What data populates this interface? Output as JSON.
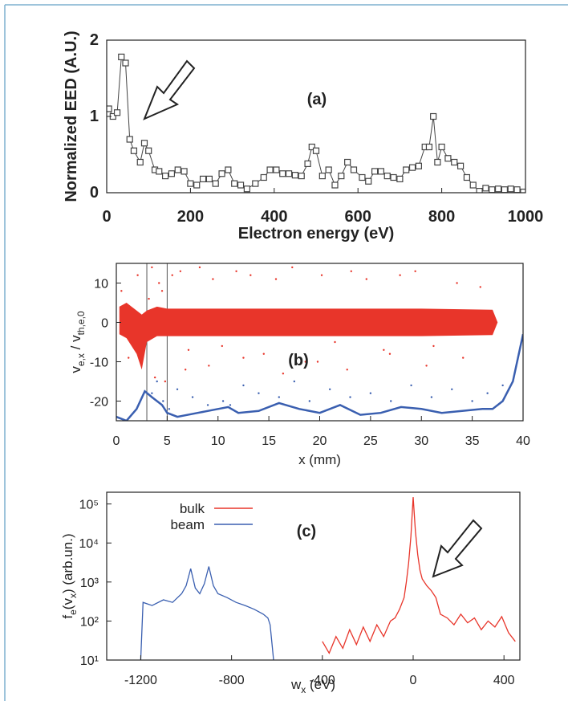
{
  "chart_data": [
    {
      "type": "line",
      "annotation": "(a)",
      "xlabel": "Electron energy (eV)",
      "ylabel": [
        "Normalized EED (A.U.)"
      ],
      "xlim": [
        0,
        1000
      ],
      "xticks": [
        0,
        200,
        400,
        600,
        800,
        1000
      ],
      "ylim": [
        0,
        2
      ],
      "yticks": [
        0,
        1,
        2
      ],
      "marker": "square",
      "series": [
        {
          "color": "#444444",
          "x": [
            5,
            15,
            25,
            35,
            45,
            55,
            65,
            80,
            90,
            100,
            115,
            125,
            140,
            155,
            170,
            185,
            200,
            215,
            230,
            245,
            260,
            275,
            290,
            305,
            320,
            335,
            355,
            375,
            390,
            405,
            420,
            435,
            450,
            465,
            480,
            490,
            500,
            515,
            530,
            545,
            560,
            575,
            590,
            610,
            625,
            640,
            655,
            670,
            685,
            700,
            715,
            730,
            745,
            760,
            770,
            780,
            790,
            800,
            815,
            830,
            845,
            860,
            875,
            890,
            905,
            920,
            935,
            950,
            965,
            980,
            995
          ],
          "values": [
            1.1,
            1.0,
            1.05,
            1.78,
            1.7,
            0.7,
            0.55,
            0.4,
            0.65,
            0.55,
            0.3,
            0.28,
            0.22,
            0.25,
            0.3,
            0.28,
            0.12,
            0.1,
            0.18,
            0.18,
            0.12,
            0.25,
            0.3,
            0.12,
            0.1,
            0.05,
            0.12,
            0.2,
            0.3,
            0.3,
            0.25,
            0.25,
            0.23,
            0.22,
            0.38,
            0.6,
            0.55,
            0.22,
            0.3,
            0.1,
            0.22,
            0.4,
            0.3,
            0.2,
            0.15,
            0.28,
            0.28,
            0.22,
            0.2,
            0.18,
            0.3,
            0.33,
            0.35,
            0.6,
            0.6,
            1.0,
            0.4,
            0.6,
            0.45,
            0.4,
            0.35,
            0.2,
            0.1,
            0.02,
            0.06,
            0.04,
            0.05,
            0.04,
            0.05,
            0.04,
            0.01
          ]
        }
      ]
    },
    {
      "type": "scatter",
      "annotation": "(b)",
      "xlabel": "x (mm)",
      "ylabel": [
        "v",
        "e,x",
        " / v",
        "th,e,0"
      ],
      "xlim": [
        0,
        40
      ],
      "xticks": [
        0,
        5,
        10,
        15,
        20,
        25,
        30,
        35,
        40
      ],
      "ylim": [
        -25,
        15
      ],
      "yticks": [
        -20,
        -10,
        0,
        10
      ],
      "vlines": [
        3,
        5
      ],
      "series": [
        {
          "style": "band",
          "color": "#e8352a",
          "x": [
            0.3,
            1,
            2,
            2.5,
            3,
            4,
            5,
            10,
            20,
            30,
            37,
            37.5
          ],
          "upper": [
            4,
            5,
            3,
            2,
            3,
            4,
            3.5,
            3.5,
            3.5,
            3.5,
            3.2,
            0
          ],
          "lower": [
            -3,
            -4,
            -8,
            -12,
            -5,
            -3.5,
            -3.5,
            -3.5,
            -3.5,
            -3.5,
            -3.2,
            0
          ]
        },
        {
          "style": "points",
          "color": "#e8352a",
          "x": [
            0.5,
            1.2,
            2.1,
            3.5,
            4.2,
            5.5,
            6.3,
            7.1,
            8.2,
            9.5,
            10.4,
            11.8,
            13.2,
            14.5,
            15.7,
            17.3,
            18.6,
            20.2,
            21.5,
            23.1,
            24.6,
            26.3,
            27.9,
            29.4,
            31.2,
            33.5,
            35.8,
            4.8,
            6.8,
            9.1,
            12.5,
            16.4,
            19.8,
            22.7,
            26.9,
            30.5,
            34.1,
            3.2,
            3.8,
            4.5
          ],
          "values": [
            8,
            -9,
            12,
            14,
            10,
            12,
            13,
            -7,
            14,
            11,
            -6,
            13,
            12,
            -8,
            11,
            14,
            -10,
            12,
            -5,
            13,
            11,
            -7,
            12,
            13,
            -6,
            10,
            9,
            -15,
            -12,
            -11,
            -9,
            -13,
            -10,
            -12,
            -8,
            -11,
            -9,
            6,
            -14,
            8
          ]
        },
        {
          "style": "points",
          "color": "#3a5fb0",
          "x": [
            3.5,
            4,
            4.6,
            5.2,
            6,
            7.5,
            9,
            10.5,
            11.2,
            12.5,
            14,
            16,
            17.5,
            19,
            21,
            23,
            25,
            27,
            29,
            31,
            33,
            35,
            36.5,
            38
          ],
          "values": [
            -18,
            -15,
            -20,
            -22,
            -17,
            -19,
            -21,
            -20,
            -21,
            -16,
            -18,
            -19,
            -15,
            -20,
            -17,
            -19,
            -18,
            -20,
            -16,
            -19,
            -17,
            -20,
            -18,
            -16
          ]
        },
        {
          "style": "line",
          "color": "#3a5fb0",
          "x": [
            0,
            1,
            2,
            2.8,
            3.5,
            4.5,
            5,
            6,
            8,
            10,
            11,
            12,
            14,
            16,
            18,
            20,
            22,
            24,
            26,
            28,
            30,
            32,
            34,
            36,
            37,
            38,
            39,
            40
          ],
          "values": [
            -24,
            -25,
            -22,
            -17.5,
            -19,
            -21,
            -23,
            -24,
            -23,
            -22,
            -21.5,
            -23,
            -22.5,
            -20.5,
            -22,
            -23,
            -21,
            -23.5,
            -23,
            -21.5,
            -22,
            -23,
            -22.5,
            -22,
            -22,
            -20,
            -15,
            -3
          ]
        }
      ]
    },
    {
      "type": "line",
      "annotation": "(c)",
      "xlabel": [
        "w",
        "x",
        " (eV)"
      ],
      "ylabel": [
        "f",
        "e",
        "(v",
        "x",
        ") (arb.un.)"
      ],
      "xlim": [
        -1350,
        470
      ],
      "xticks": [
        -1200,
        -800,
        -400,
        0,
        400
      ],
      "ylog": true,
      "ylim": [
        10,
        200000
      ],
      "yticks": [
        {
          "value": 10,
          "label": "10¹"
        },
        {
          "value": 100,
          "label": "10²"
        },
        {
          "value": 1000,
          "label": "10³"
        },
        {
          "value": 10000,
          "label": "10⁴"
        },
        {
          "value": 100000,
          "label": "10⁵"
        }
      ],
      "legend": "upper left",
      "series": [
        {
          "name": "bulk",
          "color": "#e8352a",
          "x": [
            -400,
            -370,
            -340,
            -310,
            -280,
            -250,
            -220,
            -190,
            -160,
            -130,
            -100,
            -80,
            -60,
            -40,
            -30,
            -20,
            -10,
            0,
            10,
            20,
            30,
            40,
            60,
            80,
            100,
            120,
            150,
            180,
            210,
            240,
            270,
            300,
            330,
            360,
            390,
            420,
            450
          ],
          "values": [
            30,
            15,
            40,
            20,
            60,
            25,
            70,
            30,
            80,
            40,
            100,
            120,
            200,
            400,
            1000,
            3000,
            15000,
            150000,
            20000,
            5000,
            2000,
            1200,
            800,
            600,
            400,
            150,
            120,
            80,
            150,
            90,
            120,
            60,
            100,
            70,
            130,
            50,
            30
          ]
        },
        {
          "name": "beam",
          "color": "#3a5fb0",
          "x": [
            -1200,
            -1190,
            -1150,
            -1100,
            -1060,
            -1020,
            -1000,
            -980,
            -960,
            -940,
            -920,
            -900,
            -880,
            -860,
            -820,
            -780,
            -740,
            -700,
            -660,
            -640,
            -630,
            -620,
            -615
          ],
          "values": [
            10,
            300,
            250,
            350,
            300,
            500,
            800,
            2200,
            700,
            500,
            900,
            2500,
            800,
            500,
            400,
            300,
            250,
            200,
            150,
            120,
            80,
            20,
            10
          ]
        }
      ]
    }
  ]
}
